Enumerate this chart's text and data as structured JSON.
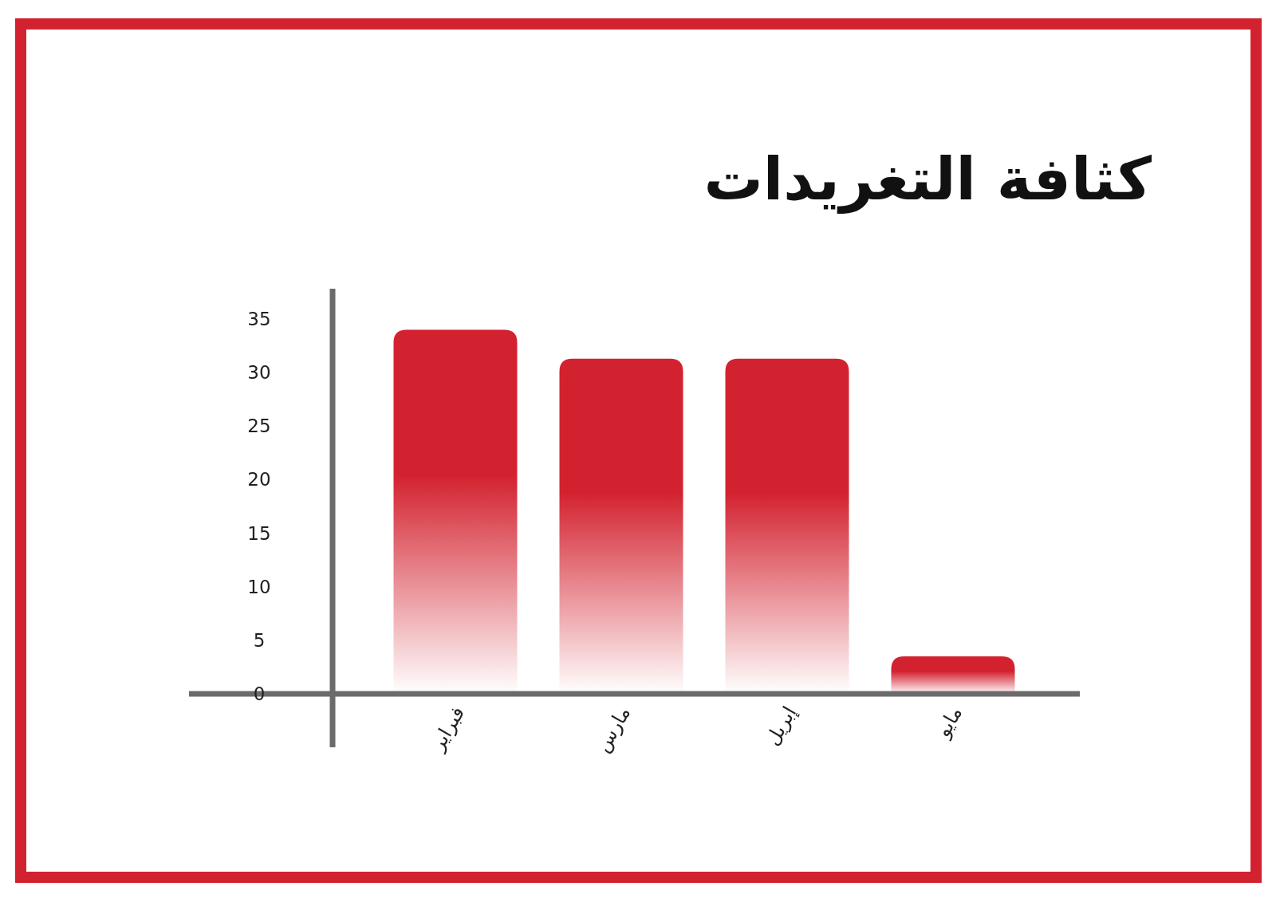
{
  "chart_data": {
    "type": "bar",
    "title": "كثافة التغريدات",
    "categories": [
      "فبراير",
      "مارس",
      "إبريل",
      "مايو"
    ],
    "values": [
      34,
      31.3,
      31.3,
      3.5
    ],
    "color": "#d3222f",
    "ylim": [
      0,
      35
    ],
    "yticks": [
      0,
      5,
      10,
      15,
      20,
      25,
      30,
      35
    ]
  }
}
